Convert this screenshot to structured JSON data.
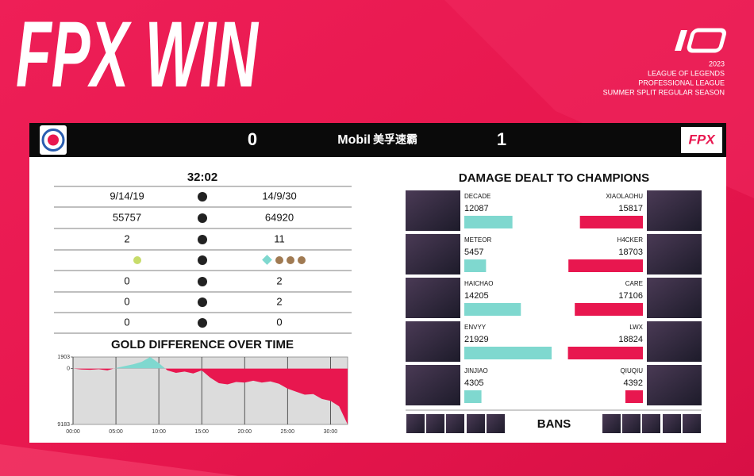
{
  "header": {
    "title": "FPX WIN",
    "season_lines": [
      "2023",
      "LEAGUE OF LEGENDS",
      "PROFESSIONAL LEAGUE",
      "SUMMER SPLIT REGULAR SEASON"
    ]
  },
  "scoreboard": {
    "left_score": "0",
    "sponsor": "Mobil",
    "sponsor_cn": "美孚速霸",
    "right_score": "1",
    "right_logo": "FPX"
  },
  "stats": {
    "time": "32:02",
    "rows": [
      {
        "left": "9/14/19",
        "right": "14/9/30"
      },
      {
        "left": "55757",
        "right": "64920"
      },
      {
        "left": "2",
        "right": "11"
      },
      {
        "left": "0",
        "right": "2"
      },
      {
        "left": "0",
        "right": "2"
      },
      {
        "left": "0",
        "right": "0"
      }
    ]
  },
  "chart_data": {
    "type": "area",
    "title": "GOLD DIFFERENCE OVER TIME",
    "x": [
      0,
      1,
      2,
      3,
      4,
      5,
      6,
      7,
      8,
      9,
      10,
      11,
      12,
      13,
      14,
      15,
      16,
      17,
      18,
      19,
      20,
      21,
      22,
      23,
      24,
      25,
      26,
      27,
      28,
      29,
      30,
      31,
      32
    ],
    "values": [
      0,
      -150,
      -200,
      -100,
      -300,
      100,
      400,
      700,
      1100,
      1903,
      900,
      -300,
      -700,
      -500,
      -800,
      -300,
      -1500,
      -2400,
      -2600,
      -2200,
      -2300,
      -2000,
      -2300,
      -2100,
      -2500,
      -3300,
      -3800,
      -4300,
      -4200,
      -5000,
      -5300,
      -6200,
      -9183
    ],
    "positive_color": "#7fd8cf",
    "negative_color": "#e8174f",
    "xlim": [
      0,
      32
    ],
    "ylim": [
      -9183,
      1903
    ],
    "xticks": [
      {
        "value": 0,
        "label": "00:00"
      },
      {
        "value": 5,
        "label": "05:00"
      },
      {
        "value": 10,
        "label": "10:00"
      },
      {
        "value": 15,
        "label": "15:00"
      },
      {
        "value": 20,
        "label": "20:00"
      },
      {
        "value": 25,
        "label": "25:00"
      },
      {
        "value": 30,
        "label": "30:00"
      }
    ],
    "yticks": [
      1903,
      0,
      {
        "value": -9183,
        "label": "9183"
      }
    ],
    "grid": true
  },
  "damage": {
    "title": "DAMAGE DEALT TO CHAMPIONS",
    "left_color": "#7fd8cf",
    "right_color": "#e8174f",
    "left": [
      {
        "name": "DECADE",
        "value": 12087
      },
      {
        "name": "METEOR",
        "value": 5457
      },
      {
        "name": "HAICHAO",
        "value": 14205
      },
      {
        "name": "ENVYY",
        "value": 21929
      },
      {
        "name": "JINJIAO",
        "value": 4305
      }
    ],
    "right": [
      {
        "name": "XIAOLAOHU",
        "value": 15817
      },
      {
        "name": "H4CKER",
        "value": 18703
      },
      {
        "name": "CARE",
        "value": 17106
      },
      {
        "name": "LWX",
        "value": 18824
      },
      {
        "name": "QIUQIU",
        "value": 4392
      }
    ]
  },
  "bans": {
    "label": "BANS"
  }
}
